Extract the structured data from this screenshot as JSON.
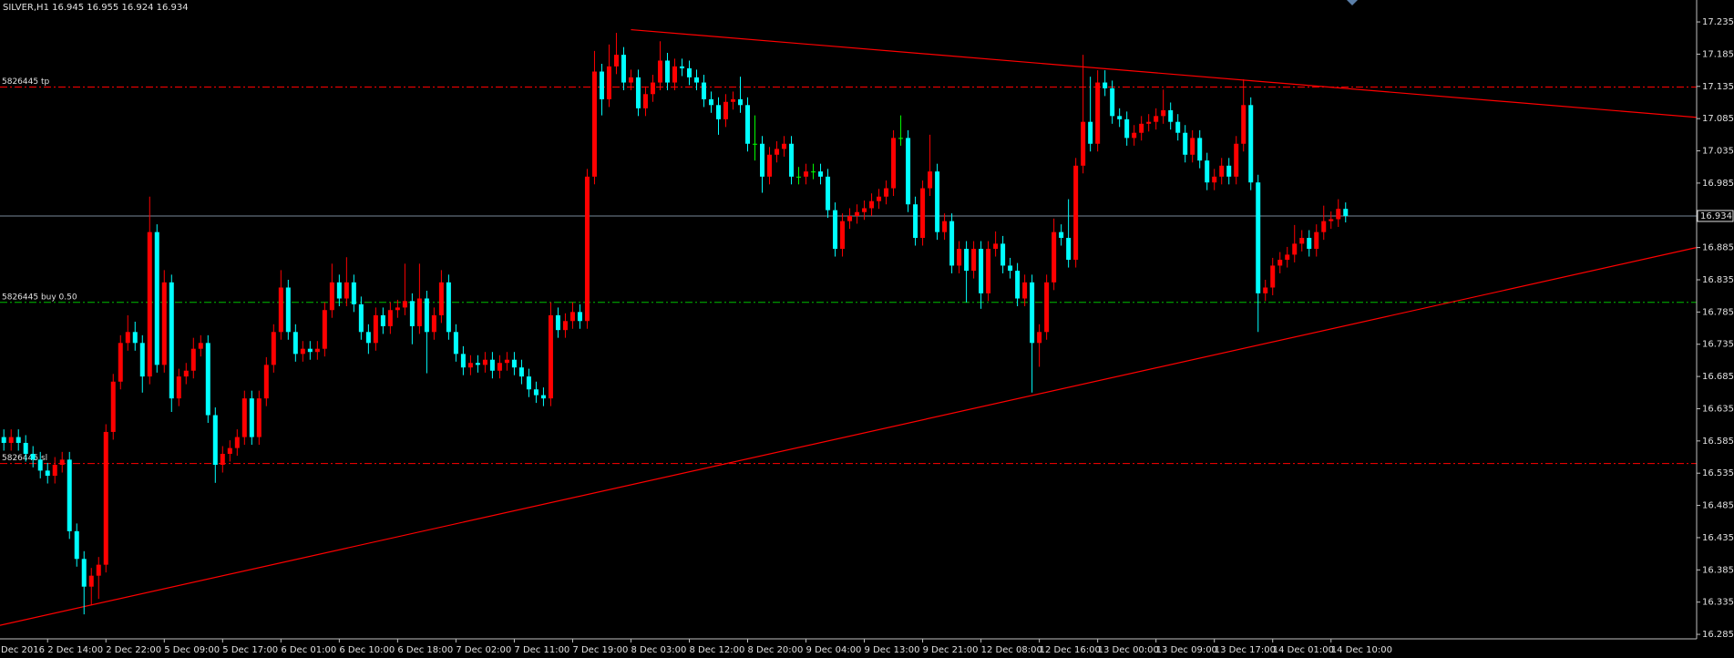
{
  "chart_data": {
    "type": "candlestick",
    "title": "SILVER,H1  16.945 16.955 16.924 16.934",
    "categories": [
      "Dec 2016",
      null,
      null,
      null,
      null,
      null,
      null,
      null,
      "2 Dec 14:00",
      null,
      null,
      null,
      null,
      null,
      null,
      null,
      "2 Dec 22:00",
      null,
      null,
      null,
      null,
      null,
      null,
      null,
      "5 Dec 09:00",
      null,
      null,
      null,
      null,
      null,
      null,
      null,
      "5 Dec 17:00",
      null,
      null,
      null,
      null,
      null,
      null,
      null,
      "6 Dec 01:00",
      null,
      null,
      null,
      null,
      null,
      null,
      null,
      "6 Dec 10:00",
      null,
      null,
      null,
      null,
      null,
      null,
      null,
      "6 Dec 18:00",
      null,
      null,
      null,
      null,
      null,
      null,
      null,
      "7 Dec 02:00",
      null,
      null,
      null,
      null,
      null,
      null,
      null,
      "7 Dec 11:00",
      null,
      null,
      null,
      null,
      null,
      null,
      null,
      "7 Dec 19:00",
      null,
      null,
      null,
      null,
      null,
      null,
      null,
      "8 Dec 03:00",
      null,
      null,
      null,
      null,
      null,
      null,
      null,
      "8 Dec 12:00",
      null,
      null,
      null,
      null,
      null,
      null,
      null,
      "8 Dec 20:00",
      null,
      null,
      null,
      null,
      null,
      null,
      null,
      "9 Dec 04:00",
      null,
      null,
      null,
      null,
      null,
      null,
      null,
      "9 Dec 13:00",
      null,
      null,
      null,
      null,
      null,
      null,
      null,
      "9 Dec 21:00",
      null,
      null,
      null,
      null,
      null,
      null,
      null,
      "12 Dec 08:00",
      null,
      null,
      null,
      null,
      null,
      null,
      null,
      "12 Dec 16:00",
      null,
      null,
      null,
      null,
      null,
      null,
      null,
      "13 Dec 00:00",
      null,
      null,
      null,
      null,
      null,
      null,
      null,
      "13 Dec 09:00",
      null,
      null,
      null,
      null,
      null,
      null,
      null,
      "13 Dec 17:00",
      null,
      null,
      null,
      null,
      null,
      null,
      null,
      "14 Dec 01:00",
      null,
      null,
      null,
      null,
      null,
      null,
      null,
      "14 Dec 10:00",
      null,
      null
    ],
    "open": [
      16.575,
      16.582,
      16.591,
      16.582,
      16.591,
      16.582,
      16.565,
      16.556,
      16.539,
      16.531,
      16.548,
      16.556,
      16.445,
      16.402,
      16.359,
      16.376,
      16.393,
      16.599,
      16.677,
      16.737,
      16.754,
      16.737,
      16.685,
      16.909,
      16.703,
      16.831,
      16.651,
      16.685,
      16.694,
      16.728,
      16.737,
      16.625,
      16.548,
      16.565,
      16.574,
      16.591,
      16.651,
      16.591,
      16.651,
      16.703,
      16.754,
      16.823,
      16.754,
      16.72,
      16.728,
      16.723,
      16.728,
      16.788,
      16.831,
      16.806,
      16.831,
      16.797,
      16.754,
      16.737,
      16.78,
      16.763,
      16.788,
      16.792,
      16.802,
      16.763,
      16.806,
      16.754,
      16.78,
      16.831,
      16.754,
      16.72,
      16.699,
      16.706,
      16.703,
      16.711,
      16.694,
      16.706,
      16.711,
      16.699,
      16.685,
      16.665,
      16.656,
      16.651,
      16.78,
      16.757,
      16.771,
      16.785,
      16.771,
      16.995,
      17.158,
      17.115,
      17.166,
      17.184,
      17.141,
      17.149,
      17.101,
      17.123,
      17.141,
      17.175,
      17.141,
      17.166,
      17.163,
      17.149,
      17.141,
      17.115,
      17.106,
      17.084,
      17.111,
      17.115,
      17.106,
      17.046,
      17.046,
      16.995,
      17.029,
      17.038,
      17.046,
      16.995,
      16.995,
      17.003,
      17.003,
      16.995,
      16.943,
      16.883,
      16.926,
      16.934,
      16.94,
      16.946,
      16.957,
      16.964,
      16.977,
      17.055,
      17.055,
      16.952,
      16.9,
      16.977,
      17.003,
      16.909,
      16.926,
      16.857,
      16.883,
      16.849,
      16.883,
      16.814,
      16.883,
      16.891,
      16.857,
      16.849,
      16.806,
      16.831,
      16.737,
      16.754,
      16.831,
      16.909,
      16.9,
      16.866,
      17.012,
      17.08,
      17.046,
      17.141,
      17.132,
      17.089,
      17.084,
      17.055,
      17.063,
      17.077,
      17.08,
      17.089,
      17.098,
      17.08,
      17.063,
      17.029,
      17.055,
      17.02,
      16.986,
      16.995,
      17.012,
      16.995,
      17.046,
      17.106,
      16.986,
      16.814,
      16.823,
      16.857,
      16.866,
      16.874,
      16.891,
      16.9,
      16.883,
      16.909,
      16.926,
      16.929,
      16.945
    ],
    "high": [
      16.594,
      16.603,
      16.603,
      16.603,
      16.603,
      16.594,
      16.577,
      16.568,
      16.551,
      16.56,
      16.568,
      16.568,
      16.457,
      16.414,
      16.388,
      16.405,
      16.611,
      16.689,
      16.749,
      16.78,
      16.77,
      16.749,
      16.964,
      16.921,
      16.85,
      16.843,
      16.697,
      16.706,
      16.745,
      16.749,
      16.749,
      16.637,
      16.577,
      16.586,
      16.603,
      16.663,
      16.663,
      16.663,
      16.715,
      16.766,
      16.85,
      16.835,
      16.766,
      16.74,
      16.74,
      16.74,
      16.8,
      16.86,
      16.843,
      16.87,
      16.843,
      16.809,
      16.766,
      16.792,
      16.792,
      16.8,
      16.804,
      16.86,
      16.814,
      16.86,
      16.818,
      16.792,
      16.85,
      16.843,
      16.766,
      16.732,
      16.718,
      16.718,
      16.723,
      16.723,
      16.718,
      16.723,
      16.723,
      16.711,
      16.697,
      16.677,
      16.668,
      16.8,
      16.792,
      16.783,
      16.8,
      16.797,
      17.007,
      17.19,
      17.17,
      17.2,
      17.218,
      17.196,
      17.161,
      17.161,
      17.135,
      17.153,
      17.205,
      17.187,
      17.178,
      17.178,
      17.175,
      17.161,
      17.153,
      17.127,
      17.118,
      17.123,
      17.127,
      17.15,
      17.118,
      17.09,
      17.058,
      17.041,
      17.05,
      17.058,
      17.058,
      17.01,
      17.015,
      17.015,
      17.015,
      17.007,
      16.955,
      16.938,
      16.946,
      16.952,
      16.958,
      16.969,
      16.976,
      16.989,
      17.067,
      17.09,
      17.067,
      16.964,
      16.989,
      17.06,
      17.015,
      16.938,
      16.938,
      16.895,
      16.895,
      16.895,
      16.895,
      16.895,
      16.91,
      16.903,
      16.869,
      16.861,
      16.843,
      16.843,
      16.766,
      16.843,
      16.93,
      16.921,
      16.96,
      17.024,
      17.184,
      17.15,
      17.16,
      17.16,
      17.144,
      17.101,
      17.096,
      17.075,
      17.089,
      17.092,
      17.101,
      17.13,
      17.11,
      17.092,
      17.075,
      17.067,
      17.067,
      17.032,
      17.007,
      17.024,
      17.024,
      17.058,
      17.146,
      17.118,
      16.998,
      16.835,
      16.869,
      16.878,
      16.886,
      16.92,
      16.912,
      16.912,
      16.921,
      16.95,
      16.941,
      16.96,
      16.955
    ],
    "low": [
      16.563,
      16.57,
      16.57,
      16.57,
      16.57,
      16.553,
      16.544,
      16.527,
      16.519,
      16.519,
      16.536,
      16.433,
      16.39,
      16.316,
      16.33,
      16.34,
      16.381,
      16.587,
      16.665,
      16.725,
      16.725,
      16.66,
      16.673,
      16.691,
      16.691,
      16.63,
      16.639,
      16.673,
      16.682,
      16.716,
      16.613,
      16.52,
      16.536,
      16.553,
      16.562,
      16.579,
      16.579,
      16.579,
      16.639,
      16.691,
      16.742,
      16.742,
      16.708,
      16.708,
      16.711,
      16.711,
      16.716,
      16.776,
      16.794,
      16.794,
      16.785,
      16.742,
      16.72,
      16.725,
      16.751,
      16.751,
      16.776,
      16.78,
      16.735,
      16.751,
      16.69,
      16.742,
      16.768,
      16.742,
      16.708,
      16.687,
      16.687,
      16.691,
      16.691,
      16.682,
      16.682,
      16.694,
      16.687,
      16.673,
      16.653,
      16.644,
      16.639,
      16.639,
      16.745,
      16.745,
      16.759,
      16.759,
      16.759,
      16.983,
      17.09,
      17.103,
      17.154,
      17.129,
      17.129,
      17.089,
      17.089,
      17.111,
      17.129,
      17.129,
      17.129,
      17.151,
      17.137,
      17.129,
      17.103,
      17.094,
      17.06,
      17.072,
      17.099,
      17.094,
      17.034,
      17.02,
      16.97,
      16.983,
      17.017,
      17.026,
      16.983,
      16.983,
      16.983,
      16.991,
      16.983,
      16.931,
      16.871,
      16.871,
      16.914,
      16.922,
      16.928,
      16.934,
      16.945,
      16.952,
      16.965,
      17.043,
      16.94,
      16.888,
      16.888,
      16.965,
      16.897,
      16.897,
      16.845,
      16.845,
      16.8,
      16.837,
      16.79,
      16.802,
      16.871,
      16.845,
      16.837,
      16.794,
      16.794,
      16.66,
      16.7,
      16.742,
      16.819,
      16.888,
      16.854,
      16.854,
      17.0,
      17.034,
      17.034,
      17.12,
      17.077,
      17.072,
      17.043,
      17.043,
      17.051,
      17.065,
      17.068,
      17.077,
      17.068,
      17.051,
      17.017,
      17.017,
      17.008,
      16.974,
      16.974,
      16.983,
      16.983,
      16.983,
      17.034,
      16.974,
      16.754,
      16.802,
      16.811,
      16.845,
      16.854,
      16.862,
      16.879,
      16.871,
      16.871,
      16.897,
      16.914,
      16.917,
      16.924
    ],
    "close": [
      16.582,
      16.591,
      16.582,
      16.591,
      16.582,
      16.565,
      16.556,
      16.539,
      16.531,
      16.548,
      16.556,
      16.445,
      16.402,
      16.359,
      16.376,
      16.393,
      16.599,
      16.677,
      16.737,
      16.754,
      16.737,
      16.685,
      16.909,
      16.703,
      16.831,
      16.651,
      16.685,
      16.694,
      16.728,
      16.737,
      16.625,
      16.548,
      16.565,
      16.574,
      16.591,
      16.651,
      16.591,
      16.651,
      16.703,
      16.754,
      16.823,
      16.754,
      16.72,
      16.728,
      16.723,
      16.728,
      16.788,
      16.831,
      16.806,
      16.831,
      16.797,
      16.754,
      16.737,
      16.78,
      16.763,
      16.788,
      16.792,
      16.802,
      16.763,
      16.806,
      16.754,
      16.78,
      16.831,
      16.754,
      16.72,
      16.699,
      16.706,
      16.703,
      16.711,
      16.694,
      16.706,
      16.711,
      16.699,
      16.685,
      16.665,
      16.656,
      16.651,
      16.78,
      16.757,
      16.771,
      16.785,
      16.771,
      16.995,
      17.158,
      17.115,
      17.166,
      17.184,
      17.141,
      17.149,
      17.101,
      17.123,
      17.141,
      17.175,
      17.141,
      17.166,
      17.163,
      17.149,
      17.141,
      17.115,
      17.106,
      17.084,
      17.111,
      17.115,
      17.106,
      17.046,
      17.046,
      16.995,
      17.029,
      17.038,
      17.046,
      16.995,
      16.995,
      17.003,
      17.003,
      16.995,
      16.943,
      16.883,
      16.926,
      16.934,
      16.94,
      16.946,
      16.957,
      16.964,
      16.977,
      17.055,
      17.055,
      16.952,
      16.9,
      16.977,
      17.003,
      16.909,
      16.926,
      16.857,
      16.883,
      16.849,
      16.883,
      16.814,
      16.883,
      16.891,
      16.857,
      16.849,
      16.806,
      16.831,
      16.737,
      16.754,
      16.831,
      16.909,
      16.9,
      16.866,
      17.012,
      17.08,
      17.046,
      17.141,
      17.132,
      17.089,
      17.084,
      17.055,
      17.063,
      17.077,
      17.08,
      17.089,
      17.098,
      17.08,
      17.063,
      17.029,
      17.055,
      17.02,
      16.986,
      16.995,
      17.012,
      16.995,
      17.046,
      17.106,
      16.986,
      16.814,
      16.823,
      16.857,
      16.866,
      16.874,
      16.891,
      16.9,
      16.883,
      16.909,
      16.926,
      16.929,
      16.945,
      16.934
    ],
    "up_color": "#ff0000",
    "down_color": "#00ffff",
    "doji_color": "#00ff00",
    "ylim": [
      16.278,
      17.269
    ],
    "yticks": [
      17.235,
      17.185,
      17.135,
      17.085,
      17.035,
      16.985,
      16.935,
      16.885,
      16.835,
      16.785,
      16.735,
      16.685,
      16.635,
      16.585,
      16.535,
      16.485,
      16.435,
      16.385,
      16.335,
      16.285
    ],
    "bid": 16.934,
    "bid_color": "#778899",
    "levels": [
      {
        "label": "5826445 tp",
        "value": 17.134,
        "color": "#ff0000"
      },
      {
        "label": "5826445 buy 0.50",
        "value": 16.8,
        "color": "#00c000"
      },
      {
        "label": "5826445 sl",
        "value": 16.55,
        "color": "#ff0000"
      }
    ],
    "trendlines": [
      {
        "x": [
          88,
          234.1
        ],
        "values": [
          17.223,
          17.087
        ],
        "color": "#ff0000"
      },
      {
        "x": [
          1.47,
          234.1
        ],
        "values": [
          16.299,
          16.885
        ],
        "color": "#ff0000"
      }
    ]
  }
}
